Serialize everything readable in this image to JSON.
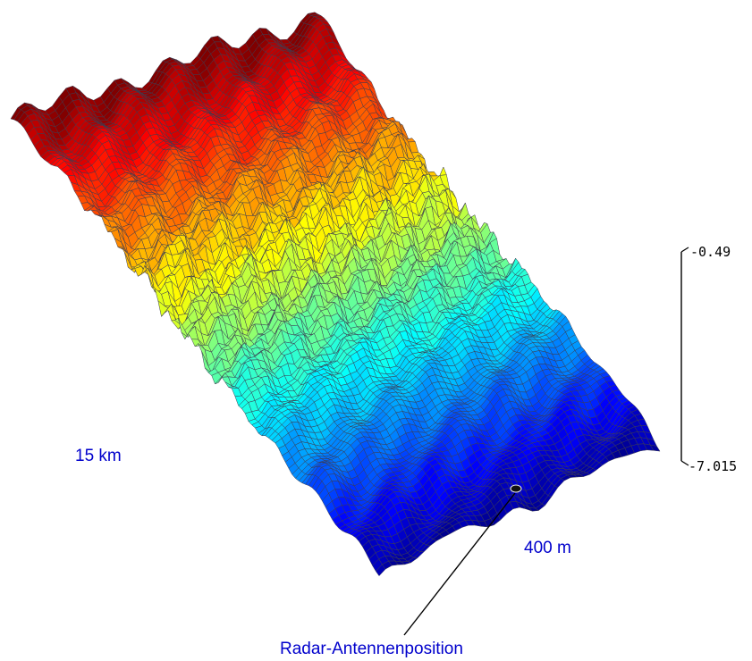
{
  "chart_data": {
    "type": "surface",
    "title": "",
    "labels": {
      "width": "15 km",
      "range": "400 m",
      "antenna": "Radar-Antennenposition"
    },
    "colorbar": {
      "max": "-0.49",
      "min": "-7.015",
      "colormap": "jet"
    },
    "grid": true,
    "colors": {
      "labels": "#0000cc",
      "mesh": "#3c3c50",
      "high": "#8b0000",
      "low": "#0000b4"
    }
  }
}
